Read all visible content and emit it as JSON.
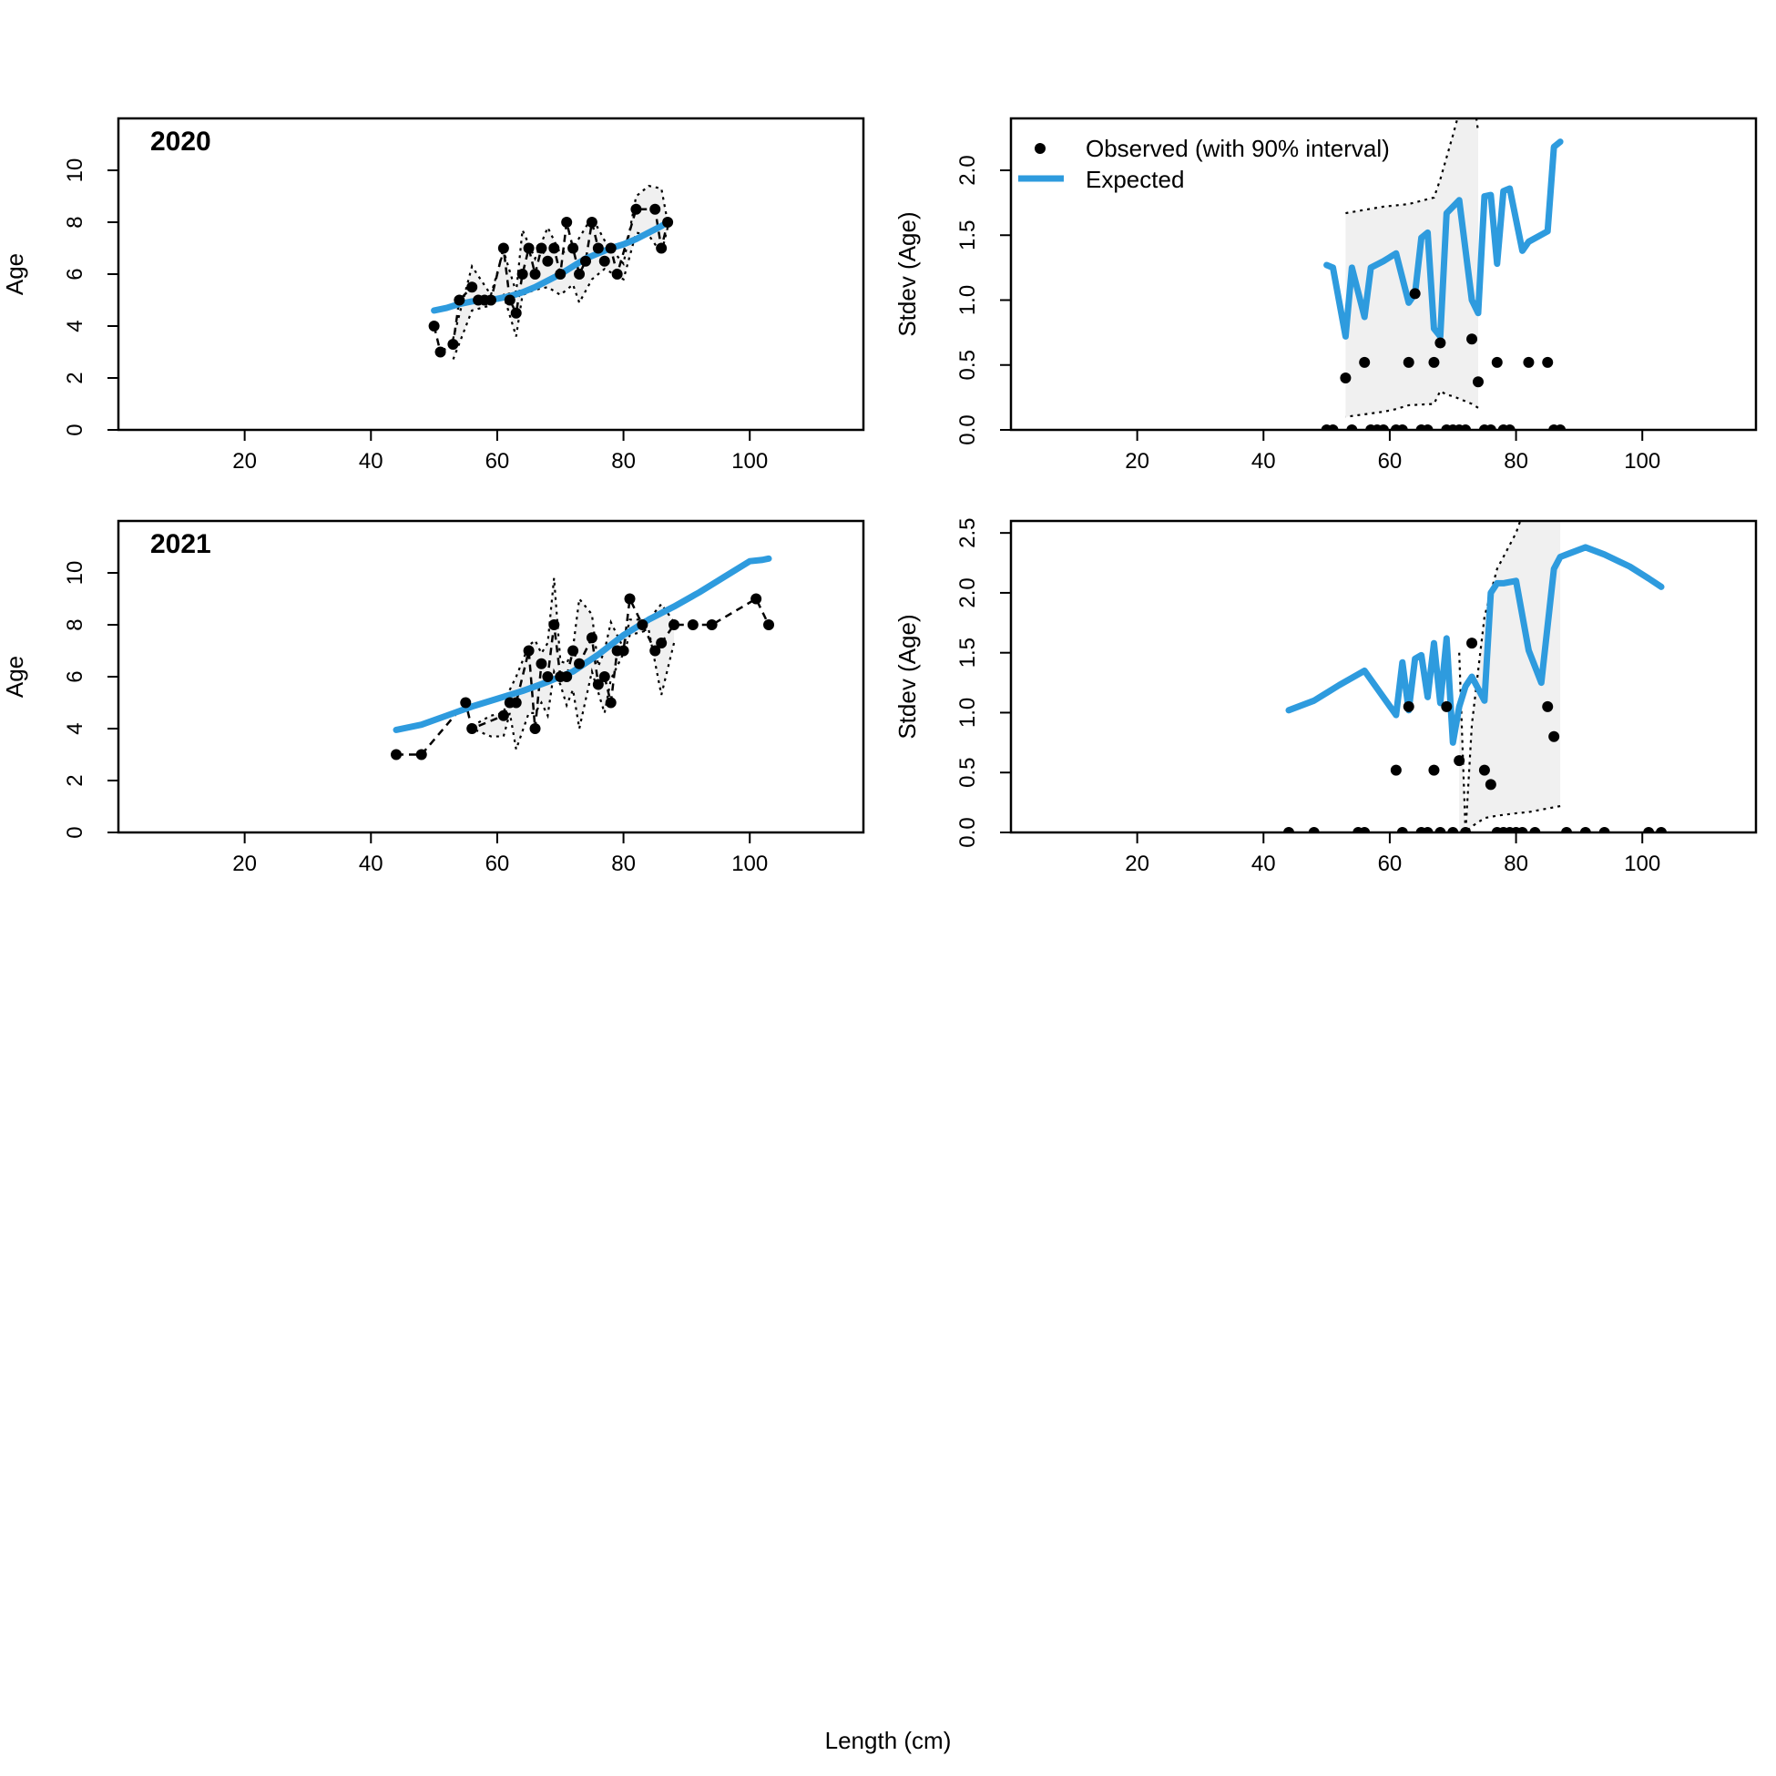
{
  "figure": {
    "xlabel": "Length (cm)",
    "colors": {
      "expected": "#2E9BDE",
      "observed": "#000000",
      "band": "#F0F0F0"
    }
  },
  "legend": {
    "observed": "Observed (with 90% interval)",
    "expected": "Expected"
  },
  "chart_data": [
    {
      "type": "line",
      "title": "2020",
      "ylabel": "Age",
      "xlim": [
        0,
        118
      ],
      "ylim": [
        0,
        12
      ],
      "xticks": [
        20,
        40,
        60,
        80,
        100
      ],
      "yticks": [
        0,
        2,
        4,
        6,
        8,
        10
      ],
      "series": [
        {
          "name": "Observed",
          "x": [
            50,
            51,
            53,
            54,
            56,
            57,
            58,
            59,
            61,
            62,
            63,
            64,
            65,
            66,
            67,
            68,
            69,
            70,
            71,
            72,
            73,
            74,
            75,
            76,
            77,
            78,
            79,
            82,
            85,
            86,
            87
          ],
          "y": [
            4,
            3,
            3.3,
            5,
            5.5,
            5,
            5,
            5,
            7,
            5,
            4.5,
            6,
            7,
            6,
            7,
            6.5,
            7,
            6,
            8,
            7,
            6,
            6.5,
            8,
            7,
            6.5,
            7,
            6,
            8.5,
            8.5,
            7,
            8
          ]
        },
        {
          "name": "Expected",
          "x": [
            50,
            52,
            54,
            56,
            58,
            60,
            62,
            64,
            66,
            68,
            70,
            72,
            74,
            76,
            78,
            80,
            82,
            84,
            86,
            87
          ],
          "y": [
            4.6,
            4.7,
            4.85,
            4.95,
            5.0,
            5.05,
            5.15,
            5.3,
            5.5,
            5.75,
            6.0,
            6.3,
            6.6,
            6.8,
            7.0,
            7.15,
            7.35,
            7.6,
            7.85,
            8.0
          ]
        }
      ],
      "interval": {
        "x": [
          53,
          56,
          59,
          61,
          63,
          64,
          66,
          68,
          70,
          72,
          73,
          75,
          77,
          80,
          82,
          84,
          86,
          87
        ],
        "lower": [
          2.7,
          4.6,
          4.8,
          5.2,
          3.6,
          5.2,
          5.4,
          5.5,
          5.2,
          5.6,
          4.9,
          5.8,
          6.2,
          5.8,
          7.6,
          7.5,
          6.8,
          7.8
        ],
        "upper": [
          3.5,
          6.3,
          5.2,
          6.9,
          5.3,
          7.7,
          6.6,
          7.8,
          6.8,
          7.0,
          7.4,
          8.2,
          7.3,
          6.4,
          9.0,
          9.4,
          9.3,
          8.0
        ]
      }
    },
    {
      "type": "line",
      "title": "",
      "ylabel": "Stdev (Age)",
      "xlim": [
        0,
        118
      ],
      "ylim": [
        0,
        2.4
      ],
      "xticks": [
        20,
        40,
        60,
        80,
        100
      ],
      "yticks": [
        0.0,
        0.5,
        1.0,
        1.5,
        2.0
      ],
      "series": [
        {
          "name": "Observed",
          "x": [
            50,
            51,
            53,
            54,
            56,
            57,
            58,
            59,
            61,
            62,
            63,
            64,
            65,
            66,
            67,
            68,
            69,
            70,
            71,
            72,
            73,
            74,
            75,
            76,
            77,
            78,
            79,
            82,
            85,
            86,
            87
          ],
          "y": [
            0,
            0,
            0.4,
            0,
            0.52,
            0,
            0,
            0,
            0,
            0,
            0.52,
            1.05,
            0,
            0,
            0.52,
            0.67,
            0,
            0,
            0,
            0,
            0.7,
            0.37,
            0,
            0,
            0.52,
            0,
            0,
            0.52,
            0.52,
            0,
            0
          ]
        },
        {
          "name": "Expected",
          "x": [
            50,
            51,
            53,
            54,
            56,
            57,
            59,
            61,
            63,
            64,
            65,
            66,
            67,
            68,
            69,
            71,
            73,
            74,
            75,
            76,
            77,
            78,
            79,
            81,
            82,
            85,
            86,
            87
          ],
          "y": [
            1.27,
            1.25,
            0.72,
            1.25,
            0.87,
            1.25,
            1.3,
            1.36,
            0.98,
            1.05,
            1.48,
            1.52,
            0.78,
            0.72,
            1.67,
            1.77,
            1.0,
            0.9,
            1.8,
            1.81,
            1.28,
            1.84,
            1.86,
            1.38,
            1.45,
            1.53,
            2.18,
            2.22
          ]
        }
      ],
      "interval": {
        "x": [
          53,
          59,
          61,
          63,
          67,
          68,
          69,
          70,
          71,
          73,
          74
        ],
        "lower": [
          0.1,
          0.14,
          0.16,
          0.19,
          0.2,
          0.3,
          0.27,
          0.26,
          0.24,
          0.2,
          0.17
        ],
        "upper": [
          1.67,
          1.72,
          1.73,
          1.74,
          1.79,
          1.93,
          2.1,
          2.27,
          2.45,
          2.65,
          2.3
        ]
      }
    },
    {
      "type": "line",
      "title": "2021",
      "ylabel": "Age",
      "xlim": [
        0,
        118
      ],
      "ylim": [
        0,
        12
      ],
      "xticks": [
        20,
        40,
        60,
        80,
        100
      ],
      "yticks": [
        0,
        2,
        4,
        6,
        8,
        10
      ],
      "series": [
        {
          "name": "Observed",
          "x": [
            44,
            48,
            55,
            56,
            61,
            62,
            63,
            65,
            66,
            67,
            68,
            69,
            70,
            71,
            72,
            73,
            75,
            76,
            77,
            78,
            79,
            80,
            81,
            83,
            85,
            86,
            88,
            91,
            94,
            101,
            103
          ],
          "y": [
            3,
            3,
            5,
            4,
            4.5,
            5,
            5,
            7,
            4,
            6.5,
            6,
            8,
            6,
            6,
            7,
            6.5,
            7.5,
            5.7,
            6,
            5,
            7,
            7,
            9,
            8,
            7,
            7.3,
            8,
            8,
            8,
            9,
            8
          ]
        },
        {
          "name": "Expected",
          "x": [
            44,
            48,
            52,
            56,
            60,
            64,
            68,
            72,
            76,
            80,
            84,
            88,
            92,
            96,
            100,
            102,
            103
          ],
          "y": [
            3.95,
            4.15,
            4.5,
            4.85,
            5.15,
            5.45,
            5.8,
            6.2,
            6.85,
            7.6,
            8.2,
            8.7,
            9.25,
            9.85,
            10.45,
            10.5,
            10.55
          ]
        }
      ],
      "interval": {
        "x": [
          56,
          59,
          61,
          62,
          63,
          65,
          66,
          67,
          68,
          69,
          70,
          71,
          72,
          73,
          75,
          76,
          77,
          78,
          80,
          81,
          84,
          86,
          88
        ],
        "lower": [
          4.0,
          3.7,
          3.7,
          4.6,
          3.2,
          4.6,
          4.6,
          5.0,
          4.5,
          6.2,
          5.7,
          4.9,
          5.5,
          4.0,
          6.2,
          5.4,
          4.6,
          5.9,
          6.9,
          7.6,
          7.8,
          5.3,
          7.3
        ],
        "upper": [
          4.1,
          4.5,
          4.6,
          5.5,
          6.0,
          7.2,
          7.4,
          6.9,
          7.3,
          9.8,
          6.6,
          6.5,
          7.1,
          9.0,
          8.4,
          6.4,
          7.0,
          8.1,
          7.1,
          8.2,
          8.2,
          8.8,
          8.1
        ]
      }
    },
    {
      "type": "line",
      "title": "",
      "ylabel": "Stdev (Age)",
      "xlim": [
        0,
        118
      ],
      "ylim": [
        0,
        2.6
      ],
      "xticks": [
        20,
        40,
        60,
        80,
        100
      ],
      "yticks": [
        0.0,
        0.5,
        1.0,
        1.5,
        2.0,
        2.5
      ],
      "series": [
        {
          "name": "Observed",
          "x": [
            44,
            48,
            55,
            56,
            61,
            62,
            63,
            65,
            66,
            67,
            68,
            69,
            70,
            71,
            72,
            73,
            75,
            76,
            77,
            78,
            79,
            80,
            81,
            83,
            85,
            86,
            88,
            91,
            94,
            101,
            103
          ],
          "y": [
            0,
            0,
            0,
            0,
            0.52,
            0,
            1.05,
            0,
            0,
            0.52,
            0,
            1.05,
            0,
            0.6,
            0,
            1.58,
            0.52,
            0.4,
            0,
            0,
            0,
            0,
            0,
            0,
            1.05,
            0.8,
            0,
            0,
            0,
            0,
            0
          ]
        },
        {
          "name": "Expected",
          "x": [
            44,
            48,
            52,
            56,
            61,
            62,
            63,
            64,
            65,
            66,
            67,
            68,
            69,
            70,
            71,
            72,
            73,
            75,
            76,
            77,
            78,
            80,
            82,
            84,
            86,
            87,
            88,
            91,
            94,
            98,
            101,
            103
          ],
          "y": [
            1.02,
            1.1,
            1.23,
            1.35,
            0.98,
            1.42,
            1.02,
            1.45,
            1.48,
            1.13,
            1.58,
            1.08,
            1.62,
            0.75,
            1.05,
            1.22,
            1.3,
            1.1,
            2.0,
            2.08,
            2.08,
            2.1,
            1.52,
            1.25,
            2.2,
            2.3,
            2.32,
            2.38,
            2.32,
            2.22,
            2.12,
            2.05
          ]
        }
      ],
      "interval": {
        "x": [
          71,
          72,
          73,
          75,
          77,
          80,
          82,
          84,
          86,
          87
        ],
        "lower": [
          0.0,
          0.0,
          0.05,
          0.12,
          0.14,
          0.16,
          0.17,
          0.19,
          0.21,
          0.22
        ],
        "upper": [
          1.5,
          0.0,
          0.9,
          1.8,
          2.2,
          2.5,
          2.8,
          2.9,
          3.0,
          3.0
        ]
      }
    }
  ]
}
